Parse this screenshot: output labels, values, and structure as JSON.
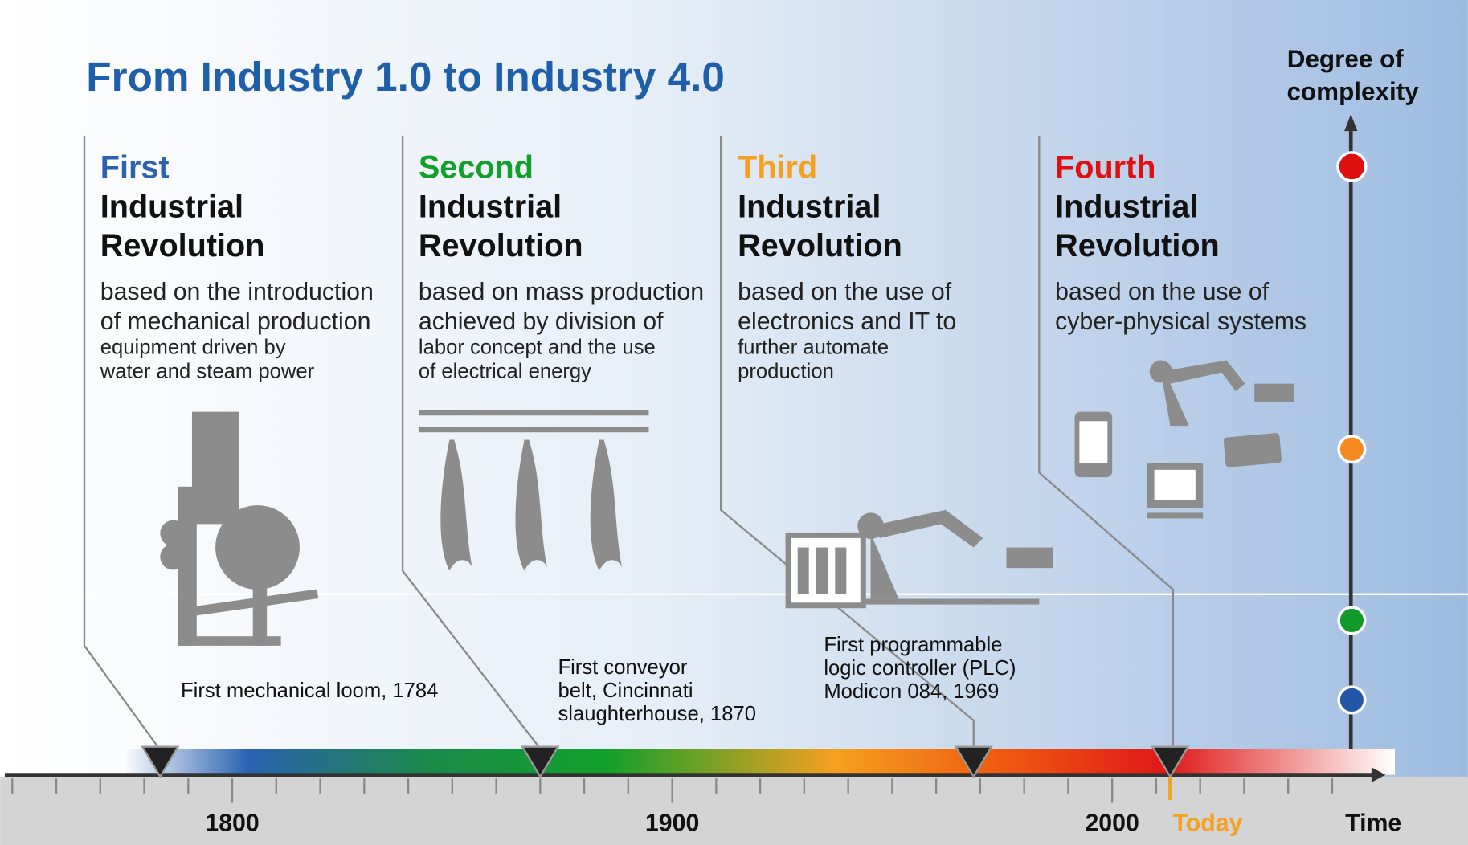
{
  "title": "From Industry 1.0 to Industry 4.0",
  "complexity_label": [
    "Degree of",
    "complexity"
  ],
  "revolutions": [
    {
      "ordinal": "First",
      "line1": "Industrial",
      "line2": "Revolution",
      "description": [
        "based on the introduction",
        "of  mechanical production",
        "equipment driven by",
        "water and steam power"
      ],
      "milestone": [
        "First mechanical loom, 1784"
      ]
    },
    {
      "ordinal": "Second",
      "line1": "Industrial",
      "line2": "Revolution",
      "description": [
        "based on mass production",
        "achieved by division of",
        "labor concept and the use",
        "of electrical energy"
      ],
      "milestone": [
        "First conveyor",
        "belt, Cincinnati",
        "slaughterhouse, 1870"
      ]
    },
    {
      "ordinal": "Third",
      "line1": "Industrial",
      "line2": "Revolution",
      "description": [
        "based on the use of",
        "electronics and IT to",
        "further automate",
        "production"
      ],
      "milestone": [
        "First programmable",
        "logic controller (PLC)",
        "Modicon 084, 1969"
      ]
    },
    {
      "ordinal": "Fourth",
      "line1": "Industrial",
      "line2": "Revolution",
      "description": [
        "based on the use of",
        "cyber-physical systems"
      ],
      "milestone": []
    }
  ],
  "axis": {
    "years": [
      "1800",
      "1900",
      "2000"
    ],
    "today": "Today",
    "time": "Time"
  }
}
